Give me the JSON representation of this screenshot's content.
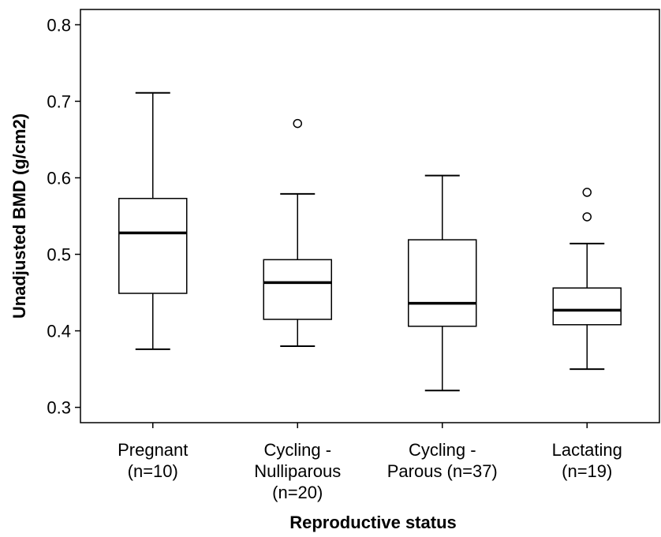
{
  "chart_data": {
    "type": "boxplot",
    "xlabel": "Reproductive status",
    "ylabel": "Unadjusted BMD (g/cm2)",
    "ylim": [
      0.28,
      0.82
    ],
    "yticks": [
      0.3,
      0.4,
      0.5,
      0.6,
      0.7,
      0.8
    ],
    "ytick_labels": [
      "0.3",
      "0.4",
      "0.5",
      "0.6",
      "0.7",
      "0.8"
    ],
    "grid": false,
    "categories": [
      {
        "label_lines": [
          "Pregnant",
          "(n=10)"
        ],
        "whisker_low": 0.376,
        "q1": 0.449,
        "median": 0.528,
        "q3": 0.573,
        "whisker_high": 0.711,
        "outliers": []
      },
      {
        "label_lines": [
          "Cycling -",
          "Nulliparous",
          "(n=20)"
        ],
        "whisker_low": 0.38,
        "q1": 0.415,
        "median": 0.463,
        "q3": 0.493,
        "whisker_high": 0.579,
        "outliers": [
          0.671
        ]
      },
      {
        "label_lines": [
          "Cycling -",
          "Parous (n=37)"
        ],
        "whisker_low": 0.322,
        "q1": 0.406,
        "median": 0.436,
        "q3": 0.519,
        "whisker_high": 0.603,
        "outliers": []
      },
      {
        "label_lines": [
          "Lactating",
          "(n=19)"
        ],
        "whisker_low": 0.35,
        "q1": 0.408,
        "median": 0.427,
        "q3": 0.456,
        "whisker_high": 0.514,
        "outliers": [
          0.549,
          0.581
        ]
      }
    ]
  }
}
